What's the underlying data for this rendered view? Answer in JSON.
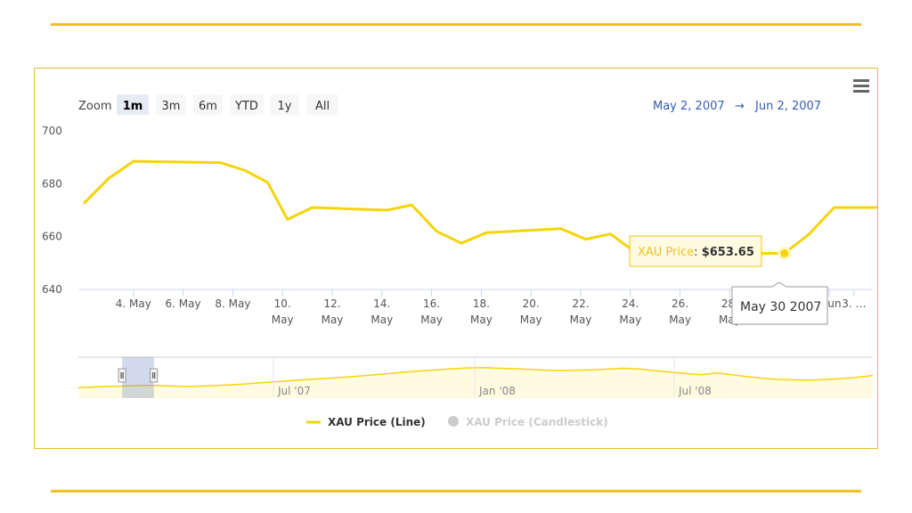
{
  "toolbar": {
    "zoom_label": "Zoom",
    "buttons": [
      "1m",
      "3m",
      "6m",
      "YTD",
      "1y",
      "All"
    ],
    "active": "1m"
  },
  "range": {
    "from": "May 2, 2007",
    "arrow": "→",
    "to": "Jun 2, 2007"
  },
  "menu_icon": "hamburger-menu-icon",
  "chart_data": {
    "type": "line",
    "y_ticks": [
      "700",
      "680",
      "660",
      "640"
    ],
    "ylim": [
      640,
      700
    ],
    "x_ticks": [
      {
        "day": 4,
        "line1": "4. May",
        "line2": ""
      },
      {
        "day": 6,
        "line1": "6. May",
        "line2": ""
      },
      {
        "day": 8,
        "line1": "8. May",
        "line2": ""
      },
      {
        "day": 10,
        "line1": "10.",
        "line2": "May"
      },
      {
        "day": 12,
        "line1": "12.",
        "line2": "May"
      },
      {
        "day": 14,
        "line1": "14.",
        "line2": "May"
      },
      {
        "day": 16,
        "line1": "16.",
        "line2": "May"
      },
      {
        "day": 18,
        "line1": "18.",
        "line2": "May"
      },
      {
        "day": 20,
        "line1": "20.",
        "line2": "May"
      },
      {
        "day": 22,
        "line1": "22.",
        "line2": "May"
      },
      {
        "day": 24,
        "line1": "24.",
        "line2": "May"
      },
      {
        "day": 26,
        "line1": "26.",
        "line2": "May"
      },
      {
        "day": 28,
        "line1": "28.",
        "line2": "May"
      },
      {
        "day": 32,
        "line1": "…un",
        "line2": ""
      },
      {
        "day": 33,
        "line1": "3. …",
        "line2": ""
      }
    ],
    "series": [
      {
        "name": "XAU Price (Line)",
        "color": "#f5d40a",
        "points": [
          {
            "day": 2,
            "value": 672.5
          },
          {
            "day": 3,
            "value": 682
          },
          {
            "day": 4,
            "value": 688.5
          },
          {
            "day": 7.5,
            "value": 688
          },
          {
            "day": 8.5,
            "value": 685
          },
          {
            "day": 9.4,
            "value": 680.5
          },
          {
            "day": 10.2,
            "value": 666.5
          },
          {
            "day": 11.2,
            "value": 671
          },
          {
            "day": 14.2,
            "value": 670
          },
          {
            "day": 15.2,
            "value": 672
          },
          {
            "day": 16.2,
            "value": 662
          },
          {
            "day": 17.2,
            "value": 657.5
          },
          {
            "day": 18.2,
            "value": 661.5
          },
          {
            "day": 21.2,
            "value": 663
          },
          {
            "day": 22.2,
            "value": 659
          },
          {
            "day": 23.2,
            "value": 661
          },
          {
            "day": 24.2,
            "value": 654
          },
          {
            "day": 29.2,
            "value": 653.65
          },
          {
            "day": 30.2,
            "value": 653.65
          },
          {
            "day": 31.2,
            "value": 661
          },
          {
            "day": 32.2,
            "value": 671
          },
          {
            "day": 34,
            "value": 671
          }
        ]
      },
      {
        "name": "XAU Price (Candlestick)",
        "color": "#cccccc",
        "hidden": true
      }
    ],
    "tooltip": {
      "series": "XAU Price",
      "value": "$653.65",
      "date": "May 30 2007",
      "day": 30.2
    },
    "navigator": {
      "labels": [
        "Jul '07",
        "Jan '08",
        "Jul '08"
      ],
      "trend": [
        656,
        660,
        663,
        665,
        668,
        668,
        665,
        662,
        665,
        668,
        672,
        678,
        684,
        690,
        696,
        701,
        706,
        712,
        718,
        725,
        732,
        740,
        746,
        752,
        758,
        762,
        764,
        760,
        758,
        754,
        750,
        748,
        750,
        752,
        756,
        760,
        756,
        748,
        740,
        732,
        726,
        735,
        725,
        715,
        706,
        700,
        698,
        696,
        700,
        705,
        712,
        722
      ],
      "selection": [
        0.055,
        0.095
      ]
    }
  }
}
